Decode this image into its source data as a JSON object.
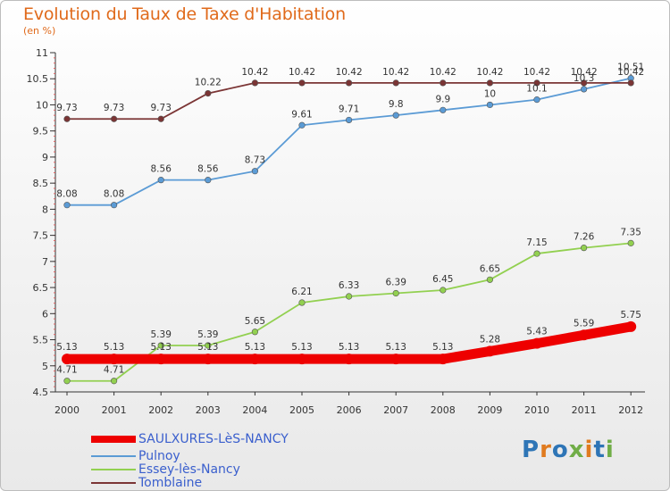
{
  "header": {
    "title": "Evolution du Taux de Taxe d'Habitation",
    "unit": "(en %)"
  },
  "logo": {
    "text": "Proxiti"
  },
  "chart_data": {
    "type": "line",
    "title": "Evolution du Taux de Taxe d'Habitation",
    "subtitle": "(en %)",
    "xlabel": "",
    "ylabel": "",
    "x": [
      "2000",
      "2001",
      "2002",
      "2003",
      "2004",
      "2005",
      "2006",
      "2007",
      "2008",
      "2009",
      "2010",
      "2011",
      "2012"
    ],
    "ylim": [
      4.5,
      11
    ],
    "yticks": [
      "4.5",
      "5",
      "5.5",
      "6",
      "6.5",
      "7",
      "7.5",
      "8",
      "8.5",
      "9",
      "9.5",
      "10",
      "10.5",
      "11"
    ],
    "grid": false,
    "legend_position": "bottom-left",
    "series": [
      {
        "name": "SAULXURES-LèS-NANCY",
        "color": "#ee0000",
        "values": [
          5.13,
          5.13,
          5.13,
          5.13,
          5.13,
          5.13,
          5.13,
          5.13,
          5.13,
          5.28,
          5.43,
          5.59,
          5.75
        ],
        "labels": [
          "5.13",
          "5.13",
          "5.13",
          "5.13",
          "5.13",
          "5.13",
          "5.13",
          "5.13",
          "5.13",
          "5.28",
          "5.43",
          "5.59",
          "5.75"
        ]
      },
      {
        "name": "Pulnoy",
        "color": "#5b9bd5",
        "values": [
          8.08,
          8.08,
          8.56,
          8.56,
          8.73,
          9.61,
          9.71,
          9.8,
          9.9,
          10,
          10.1,
          10.3,
          10.51
        ],
        "labels": [
          "8.08",
          "8.08",
          "8.56",
          "8.56",
          "8.73",
          "9.61",
          "9.71",
          "9.8",
          "9.9",
          "10",
          "10.1",
          "10.3",
          "10.51"
        ]
      },
      {
        "name": "Essey-lès-Nancy",
        "color": "#92d050",
        "values": [
          4.71,
          4.71,
          5.39,
          5.39,
          5.65,
          6.21,
          6.33,
          6.39,
          6.45,
          6.65,
          7.15,
          7.26,
          7.35
        ],
        "labels": [
          "4.71",
          "4.71",
          "5.39",
          "5.39",
          "5.65",
          "6.21",
          "6.33",
          "6.39",
          "6.45",
          "6.65",
          "7.15",
          "7.26",
          "7.35"
        ]
      },
      {
        "name": "Tomblaine",
        "color": "#7b3535",
        "values": [
          9.73,
          9.73,
          9.73,
          10.22,
          10.42,
          10.42,
          10.42,
          10.42,
          10.42,
          10.42,
          10.42,
          10.42,
          10.42
        ],
        "labels": [
          "9.73",
          "9.73",
          "9.73",
          "10.22",
          "10.42",
          "10.42",
          "10.42",
          "10.42",
          "10.42",
          "10.42",
          "10.42",
          "10.42",
          "10.42"
        ]
      }
    ]
  }
}
